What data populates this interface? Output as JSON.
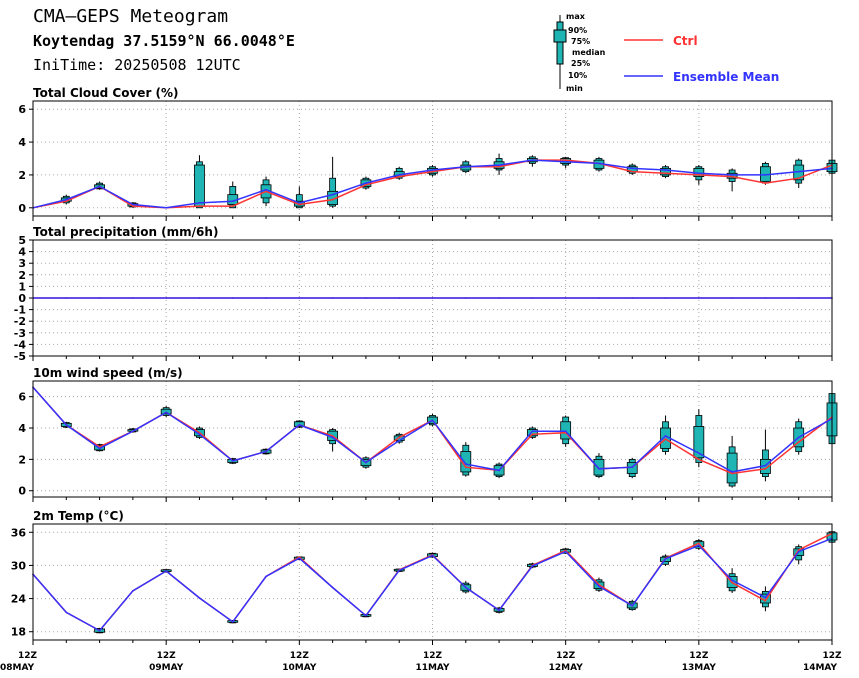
{
  "header": {
    "title": "CMA—GEPS Meteogram",
    "location": "Koytendag 37.5159°N 66.0048°E",
    "init_time": "IniTime: 20250508 12UTC"
  },
  "legend": {
    "box_labels": [
      "max",
      "90%",
      "75%",
      "median",
      "25%",
      "10%",
      "min"
    ],
    "ctrl": "Ctrl",
    "ens": "Ensemble Mean"
  },
  "colors": {
    "ctrl": "#ff3333",
    "ensemble_mean": "#3333ff",
    "box_fill": "#1fb5b5",
    "grid": "#aaaaaa",
    "axis": "#000000"
  },
  "x_tick_labels": [
    {
      "top": "12Z",
      "bottom": "08MAY"
    },
    {
      "top": "12Z",
      "bottom": "09MAY"
    },
    {
      "top": "12Z",
      "bottom": "10MAY"
    },
    {
      "top": "12Z",
      "bottom": "11MAY"
    },
    {
      "top": "12Z",
      "bottom": "12MAY"
    },
    {
      "top": "12Z",
      "bottom": "13MAY"
    },
    {
      "top": "12Z",
      "bottom": "14MAY"
    }
  ],
  "chart_data": [
    {
      "type": "line",
      "title": "Total Cloud Cover (%)",
      "x_step_hours": 6,
      "ylim": [
        -0.5,
        6.5
      ],
      "y_ticks": [
        0,
        2,
        4,
        6
      ],
      "grid": true,
      "series": [
        {
          "name": "Ctrl",
          "values": [
            0,
            0.4,
            1.3,
            0.1,
            0,
            0.1,
            0.1,
            1.0,
            0.2,
            0.5,
            1.4,
            1.9,
            2.2,
            2.5,
            2.5,
            2.9,
            2.9,
            2.7,
            2.2,
            2.1,
            2.0,
            1.9,
            1.5,
            1.8,
            2.6
          ]
        },
        {
          "name": "Ensemble Mean",
          "values": [
            0,
            0.5,
            1.3,
            0.2,
            0,
            0.3,
            0.4,
            1.1,
            0.3,
            0.8,
            1.5,
            2.0,
            2.3,
            2.5,
            2.6,
            2.9,
            2.8,
            2.7,
            2.4,
            2.3,
            2.1,
            2.0,
            2.0,
            2.2,
            2.4
          ]
        }
      ],
      "boxes": [
        null,
        [
          0.2,
          0.3,
          0.4,
          0.6,
          0.7,
          0.8
        ],
        [
          1.1,
          1.15,
          1.2,
          1.4,
          1.5,
          1.6
        ],
        [
          0,
          0.05,
          0.1,
          0.25,
          0.3,
          0.35
        ],
        null,
        [
          0,
          0,
          0.1,
          2.6,
          2.8,
          3.2
        ],
        [
          0,
          0,
          0.2,
          0.8,
          1.3,
          1.6
        ],
        [
          0.1,
          0.3,
          0.6,
          1.4,
          1.7,
          1.9
        ],
        [
          0,
          0,
          0.1,
          0.4,
          0.8,
          1.3
        ],
        [
          0,
          0.1,
          0.2,
          1.0,
          1.8,
          3.1
        ],
        [
          1.1,
          1.2,
          1.3,
          1.7,
          1.8,
          1.9
        ],
        [
          1.7,
          1.8,
          1.9,
          2.2,
          2.4,
          2.5
        ],
        [
          1.9,
          2.0,
          2.1,
          2.4,
          2.5,
          2.6
        ],
        [
          2.1,
          2.2,
          2.3,
          2.6,
          2.8,
          2.9
        ],
        [
          2.0,
          2.3,
          2.4,
          2.8,
          3.0,
          3.3
        ],
        [
          2.5,
          2.7,
          2.8,
          3.0,
          3.1,
          3.2
        ],
        [
          2.4,
          2.6,
          2.7,
          3.0,
          3.05,
          3.1
        ],
        [
          2.2,
          2.3,
          2.4,
          2.9,
          3.0,
          3.1
        ],
        [
          2.0,
          2.1,
          2.2,
          2.5,
          2.6,
          2.7
        ],
        [
          1.8,
          1.9,
          2.0,
          2.4,
          2.5,
          2.6
        ],
        [
          1.4,
          1.7,
          1.9,
          2.4,
          2.5,
          2.6
        ],
        [
          1.0,
          1.6,
          1.8,
          2.1,
          2.3,
          2.4
        ],
        [
          1.4,
          1.5,
          1.6,
          2.5,
          2.7,
          2.8
        ],
        [
          1.2,
          1.5,
          1.7,
          2.6,
          2.9,
          3.0
        ],
        [
          2.0,
          2.1,
          2.2,
          2.7,
          2.9,
          3.0
        ]
      ]
    },
    {
      "type": "line",
      "title": "Total precipitation (mm/6h)",
      "x_step_hours": 6,
      "ylim": [
        -5,
        5
      ],
      "y_ticks": [
        -5,
        -4,
        -3,
        -2,
        -1,
        0,
        1,
        2,
        3,
        4,
        5
      ],
      "grid": true,
      "series": [
        {
          "name": "Ctrl",
          "values": [
            0,
            0,
            0,
            0,
            0,
            0,
            0,
            0,
            0,
            0,
            0,
            0,
            0,
            0,
            0,
            0,
            0,
            0,
            0,
            0,
            0,
            0,
            0,
            0,
            0
          ]
        },
        {
          "name": "Ensemble Mean",
          "values": [
            0,
            0,
            0,
            0,
            0,
            0,
            0,
            0,
            0,
            0,
            0,
            0,
            0,
            0,
            0,
            0,
            0,
            0,
            0,
            0,
            0,
            0,
            0,
            0,
            0
          ]
        }
      ],
      "boxes": []
    },
    {
      "type": "line",
      "title": "10m wind speed (m/s)",
      "x_step_hours": 6,
      "ylim": [
        -0.4,
        7
      ],
      "y_ticks": [
        0,
        2,
        4,
        6
      ],
      "grid": true,
      "series": [
        {
          "name": "Ctrl",
          "values": [
            6.6,
            4.2,
            2.8,
            3.8,
            5.0,
            3.7,
            1.9,
            2.5,
            4.2,
            3.5,
            1.8,
            3.4,
            4.5,
            1.5,
            1.3,
            3.6,
            3.7,
            1.4,
            1.5,
            3.3,
            2.0,
            1.1,
            1.4,
            3.1,
            4.7
          ]
        },
        {
          "name": "Ensemble Mean",
          "values": [
            6.6,
            4.2,
            2.7,
            3.8,
            5.0,
            3.6,
            1.9,
            2.5,
            4.2,
            3.4,
            1.8,
            3.2,
            4.5,
            1.7,
            1.3,
            3.8,
            3.8,
            1.4,
            1.5,
            3.5,
            2.4,
            1.2,
            1.6,
            3.4,
            4.6
          ]
        }
      ],
      "boxes": [
        null,
        [
          4.0,
          4.05,
          4.1,
          4.3,
          4.35,
          4.4
        ],
        [
          2.5,
          2.55,
          2.6,
          2.9,
          2.95,
          3.0
        ],
        [
          3.7,
          3.75,
          3.8,
          3.9,
          3.95,
          4.0
        ],
        [
          4.7,
          4.8,
          4.9,
          5.2,
          5.3,
          5.4
        ],
        [
          3.3,
          3.4,
          3.5,
          3.9,
          4.0,
          4.1
        ],
        [
          1.7,
          1.75,
          1.8,
          2.0,
          2.05,
          2.1
        ],
        [
          2.3,
          2.35,
          2.4,
          2.6,
          2.65,
          2.7
        ],
        [
          4.0,
          4.05,
          4.1,
          4.4,
          4.45,
          4.5
        ],
        [
          2.5,
          3.0,
          3.2,
          3.8,
          3.9,
          4.0
        ],
        [
          1.4,
          1.5,
          1.6,
          2.0,
          2.1,
          2.2
        ],
        [
          3.0,
          3.1,
          3.2,
          3.5,
          3.6,
          3.7
        ],
        [
          4.1,
          4.2,
          4.3,
          4.7,
          4.8,
          4.9
        ],
        [
          0.9,
          1.0,
          1.2,
          2.5,
          2.9,
          3.1
        ],
        [
          0.8,
          0.9,
          1.0,
          1.6,
          1.7,
          1.8
        ],
        [
          3.3,
          3.4,
          3.5,
          3.9,
          4.0,
          4.1
        ],
        [
          2.8,
          3.0,
          3.3,
          4.4,
          4.7,
          4.8
        ],
        [
          0.8,
          0.9,
          1.0,
          2.0,
          2.2,
          2.4
        ],
        [
          0.8,
          0.9,
          1.1,
          1.8,
          2.0,
          2.1
        ],
        [
          2.3,
          2.5,
          2.7,
          4.0,
          4.4,
          4.8
        ],
        [
          1.5,
          1.8,
          2.1,
          4.1,
          4.8,
          5.2
        ],
        [
          0.2,
          0.3,
          0.5,
          2.4,
          2.8,
          3.5
        ],
        [
          0.6,
          0.9,
          1.1,
          2.0,
          2.6,
          3.9
        ],
        [
          2.3,
          2.5,
          2.8,
          4.0,
          4.4,
          4.6
        ],
        [
          2.5,
          3.0,
          3.5,
          5.6,
          6.2,
          6.5
        ]
      ]
    },
    {
      "type": "line",
      "title": "2m Temp (°C)",
      "x_step_hours": 6,
      "ylim": [
        16.5,
        37.5
      ],
      "y_ticks": [
        18,
        24,
        30,
        36
      ],
      "grid": true,
      "series": [
        {
          "name": "Ctrl",
          "values": [
            28.4,
            21.5,
            18.2,
            25.4,
            29.0,
            24.1,
            19.8,
            28.0,
            31.5,
            26.0,
            20.9,
            29.2,
            31.9,
            26.0,
            21.9,
            30.0,
            32.7,
            26.5,
            22.7,
            31.3,
            34.0,
            26.9,
            23.6,
            32.8,
            35.8
          ]
        },
        {
          "name": "Ensemble Mean",
          "values": [
            28.4,
            21.5,
            18.2,
            25.4,
            29.0,
            24.1,
            19.8,
            28.0,
            31.3,
            26.0,
            20.9,
            29.1,
            31.8,
            26.0,
            21.9,
            29.9,
            32.5,
            26.2,
            22.7,
            31.2,
            33.6,
            27.3,
            24.2,
            32.5,
            34.9
          ]
        }
      ],
      "boxes": [
        null,
        null,
        [
          17.7,
          17.8,
          17.9,
          18.5,
          18.6,
          18.7
        ],
        null,
        [
          28.7,
          28.8,
          28.9,
          29.2,
          29.25,
          29.3
        ],
        null,
        [
          19.5,
          19.6,
          19.7,
          20.0,
          20.05,
          20.1
        ],
        null,
        [
          31.0,
          31.05,
          31.1,
          31.5,
          31.55,
          31.6
        ],
        null,
        [
          20.6,
          20.7,
          20.8,
          21.1,
          21.15,
          21.2
        ],
        [
          28.8,
          28.9,
          29.0,
          29.3,
          29.35,
          29.4
        ],
        [
          31.4,
          31.5,
          31.6,
          32.1,
          32.2,
          32.3
        ],
        [
          24.9,
          25.2,
          25.5,
          26.5,
          26.8,
          27.2
        ],
        [
          21.3,
          21.5,
          21.7,
          22.2,
          22.3,
          22.5
        ],
        [
          29.5,
          29.7,
          29.8,
          30.2,
          30.3,
          30.5
        ],
        [
          32.1,
          32.2,
          32.4,
          32.9,
          33.0,
          33.2
        ],
        [
          25.2,
          25.5,
          25.8,
          27.0,
          27.4,
          27.8
        ],
        [
          21.8,
          22.0,
          22.3,
          23.2,
          23.5,
          23.8
        ],
        [
          29.9,
          30.2,
          30.7,
          31.5,
          31.7,
          32.0
        ],
        [
          32.8,
          33.1,
          33.4,
          34.3,
          34.5,
          34.8
        ],
        [
          25.0,
          25.4,
          26.0,
          28.0,
          28.5,
          29.5
        ],
        [
          21.7,
          22.5,
          23.2,
          24.8,
          25.3,
          26.2
        ],
        [
          30.2,
          31.0,
          31.8,
          33.0,
          33.4,
          33.8
        ],
        [
          33.8,
          34.2,
          34.6,
          35.9,
          36.1,
          36.3
        ]
      ]
    }
  ]
}
